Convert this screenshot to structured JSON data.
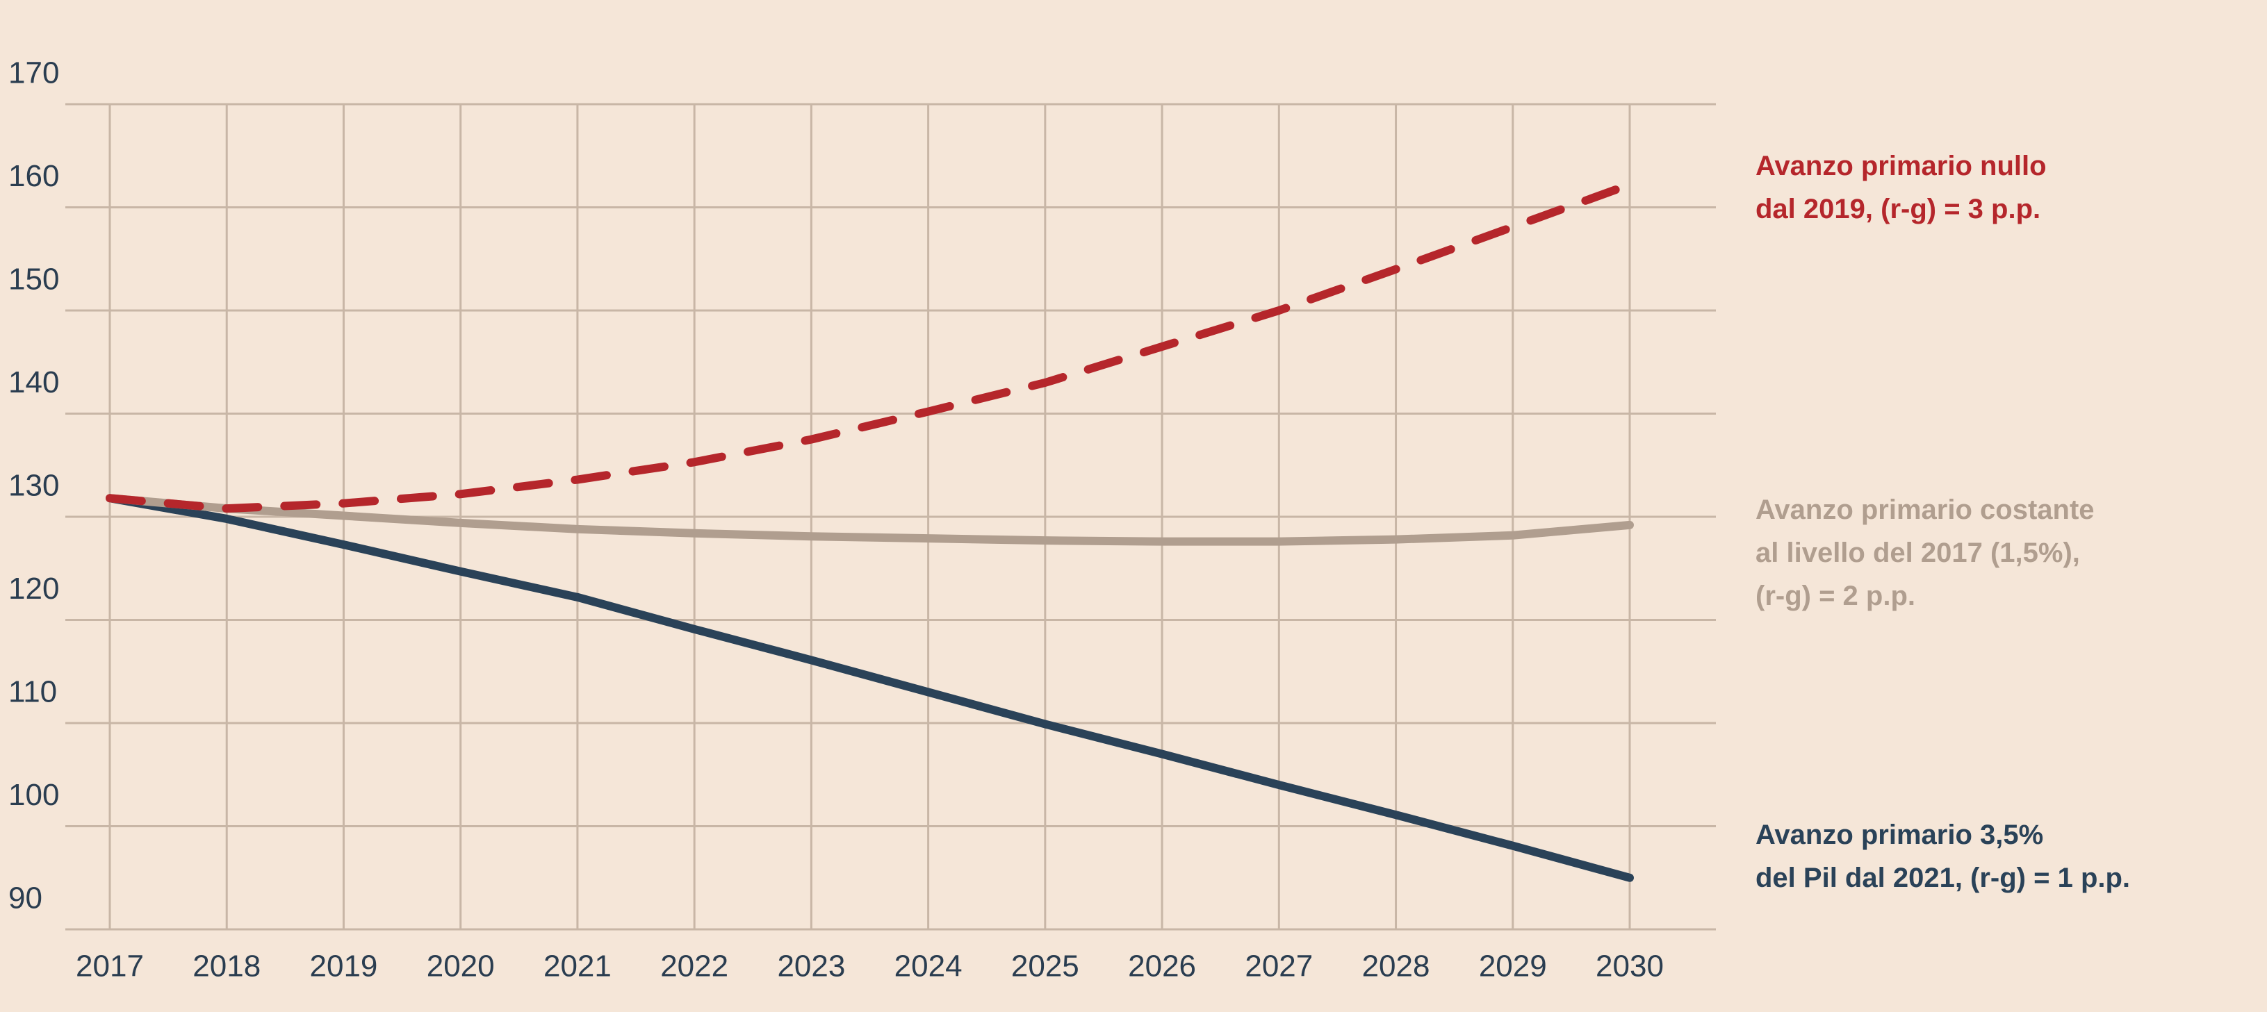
{
  "chart_data": {
    "type": "line",
    "x": [
      2017,
      2018,
      2019,
      2020,
      2021,
      2022,
      2023,
      2024,
      2025,
      2026,
      2027,
      2028,
      2029,
      2030
    ],
    "xlim": [
      2017,
      2030
    ],
    "xticks": [
      2017,
      2018,
      2019,
      2020,
      2021,
      2022,
      2023,
      2024,
      2025,
      2026,
      2027,
      2028,
      2029,
      2030
    ],
    "ylim": [
      90,
      170
    ],
    "yticks": [
      90,
      100,
      110,
      120,
      130,
      140,
      150,
      160,
      170
    ],
    "grid": true,
    "series": [
      {
        "name": "Avanzo primario 3,5%\ndel Pil dal 2021, (r-g) = 1 p.p.",
        "color": "#2a4258",
        "dashed": false,
        "values": [
          131.8,
          129.8,
          127.3,
          124.7,
          122.2,
          119.1,
          116.1,
          113.0,
          109.9,
          107.0,
          104.0,
          101.1,
          98.1,
          95.0
        ]
      },
      {
        "name": "Avanzo primario costante\nal livello del 2017 (1,5%),\n(r-g) = 2 p.p.",
        "color": "#b09e8f",
        "dashed": false,
        "values": [
          131.8,
          130.8,
          130.1,
          129.4,
          128.8,
          128.4,
          128.1,
          127.9,
          127.7,
          127.6,
          127.6,
          127.8,
          128.2,
          129.2
        ]
      },
      {
        "name": "Avanzo primario nullo\ndal 2019, (r-g) = 3 p.p.",
        "color": "#b5262b",
        "dashed": true,
        "values": [
          131.8,
          130.8,
          131.3,
          132.2,
          133.6,
          135.3,
          137.5,
          140.2,
          143.0,
          146.5,
          150.0,
          154.0,
          158.1,
          162.2
        ]
      }
    ]
  }
}
